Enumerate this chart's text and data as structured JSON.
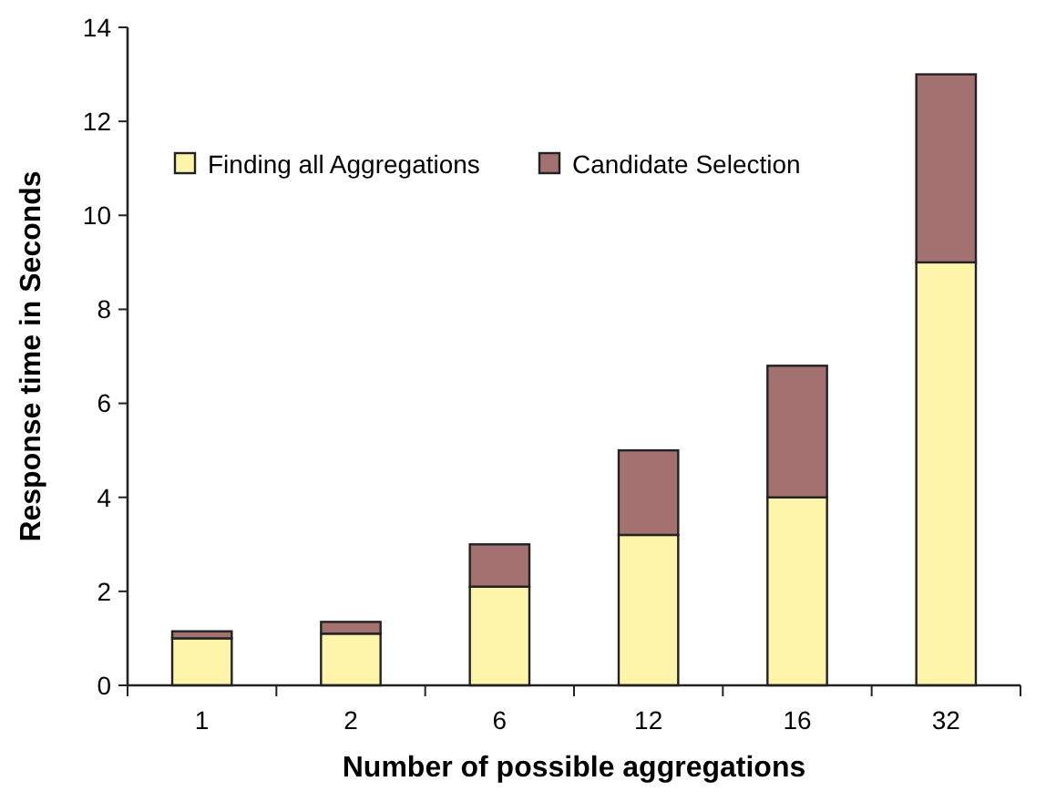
{
  "chart_data": {
    "type": "bar",
    "stacked": true,
    "xlabel": "Number of possible aggregations",
    "ylabel": "Response time in Seconds",
    "categories": [
      "1",
      "2",
      "6",
      "12",
      "16",
      "32"
    ],
    "series": [
      {
        "name": "Finding all Aggregations",
        "color": "#fff5aa",
        "values": [
          1.0,
          1.1,
          2.1,
          3.2,
          4.0,
          9.0
        ]
      },
      {
        "name": "Candidate Selection",
        "color": "#a37270",
        "values": [
          0.15,
          0.25,
          0.9,
          1.8,
          2.8,
          4.0
        ]
      }
    ],
    "ylim": [
      0,
      14
    ],
    "yticks": [
      0,
      2,
      4,
      6,
      8,
      10,
      12,
      14
    ],
    "grid": false,
    "legend": "top left"
  }
}
